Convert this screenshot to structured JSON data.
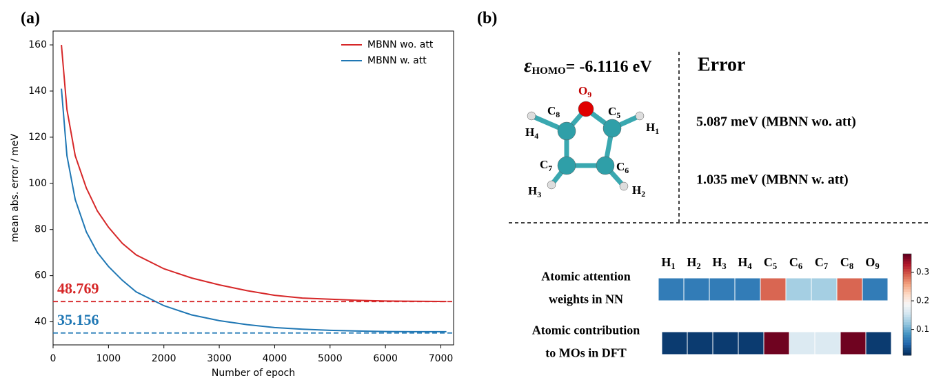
{
  "panel_labels": [
    "(a)",
    "(b)"
  ],
  "chart_data": [
    {
      "type": "line",
      "xlabel": "Number of epoch",
      "ylabel": "mean abs. error / meV",
      "x": [
        150,
        250,
        400,
        600,
        800,
        1000,
        1250,
        1500,
        2000,
        2500,
        3000,
        3500,
        4000,
        4500,
        5000,
        5500,
        6000,
        6500,
        7100
      ],
      "series": [
        {
          "name": "MBNN wo. att",
          "color": "#d62728",
          "values": [
            160,
            132,
            112,
            98,
            88,
            81,
            74,
            69,
            63,
            59,
            56,
            53.5,
            51.5,
            50.3,
            49.8,
            49.3,
            49,
            48.9,
            48.8
          ]
        },
        {
          "name": "MBNN w. att",
          "color": "#1f77b4",
          "values": [
            141,
            112,
            93,
            79,
            70,
            64,
            58,
            53,
            47,
            43,
            40.5,
            38.8,
            37.5,
            36.8,
            36.3,
            36.0,
            35.8,
            35.7,
            35.7
          ]
        }
      ],
      "reference_lines": [
        {
          "value": 48.769,
          "color": "#d62728"
        },
        {
          "value": 35.156,
          "color": "#1f77b4"
        }
      ],
      "xlim": [
        0,
        7230
      ],
      "xticks": [
        0,
        1000,
        2000,
        3000,
        4000,
        5000,
        6000,
        7000
      ],
      "ylim": [
        30,
        166
      ],
      "yticks": [
        40,
        60,
        80,
        100,
        120,
        140,
        160
      ],
      "legend": "upper right"
    },
    {
      "type": "heatmap",
      "categories": [
        "H1",
        "H2",
        "H3",
        "H4",
        "C5",
        "C6",
        "C7",
        "C8",
        "O9"
      ],
      "rows": [
        {
          "name": [
            "Atomic attention",
            "weights in NN"
          ],
          "values": [
            0.063,
            0.063,
            0.063,
            0.063,
            0.29,
            0.127,
            0.127,
            0.29,
            0.063
          ]
        },
        {
          "name": [
            "Atomic contribution",
            "to MOs in DFT"
          ],
          "values": [
            0.017,
            0.017,
            0.017,
            0.017,
            0.36,
            0.162,
            0.162,
            0.36,
            0.017
          ]
        }
      ],
      "colormap": "RdBu_r",
      "clim": [
        0.01,
        0.364
      ],
      "cticks": [
        0.1,
        0.2,
        0.3
      ]
    }
  ],
  "molecule": {
    "homo": {
      "symbol": "ε",
      "subscript": "HOMO",
      "text": "= -6.1116 eV"
    },
    "atoms": [
      {
        "label": "O9"
      },
      {
        "label": "C8"
      },
      {
        "label": "C5"
      },
      {
        "label": "C7"
      },
      {
        "label": "C6"
      },
      {
        "label": "H4"
      },
      {
        "label": "H1"
      },
      {
        "label": "H3"
      },
      {
        "label": "H2"
      }
    ]
  },
  "error": {
    "title": "Error",
    "rows": [
      "5.087 meV (MBNN wo. att)",
      "1.035 meV (MBNN w. att)"
    ]
  }
}
